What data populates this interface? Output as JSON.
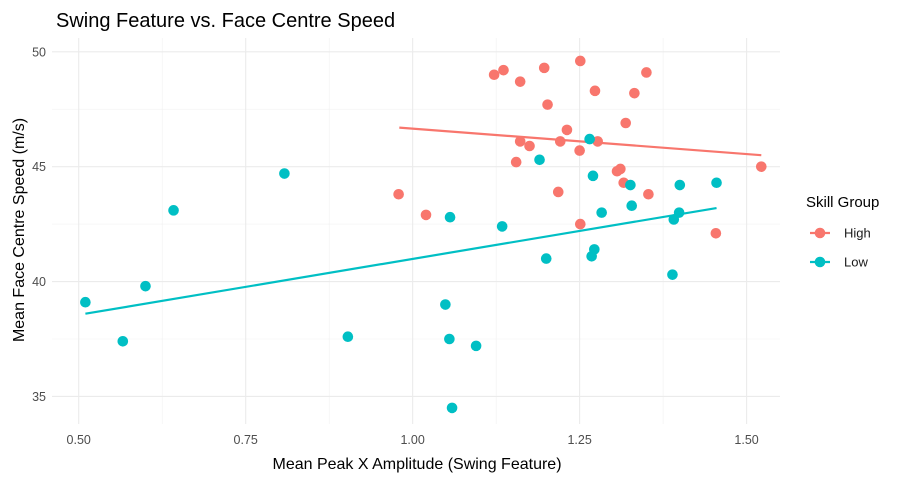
{
  "chart_data": {
    "type": "scatter",
    "title": "Swing Feature vs. Face Centre Speed",
    "xlabel": "Mean Peak X Amplitude (Swing Feature)",
    "ylabel": "Mean Face Centre Speed (m/s)",
    "xlim": [
      0.46,
      1.55
    ],
    "ylim": [
      33.8,
      50.6
    ],
    "xticks": [
      0.5,
      0.75,
      1.0,
      1.25,
      1.5
    ],
    "xtick_labels": [
      "0.50",
      "0.75",
      "1.00",
      "1.25",
      "1.50"
    ],
    "yticks": [
      35,
      40,
      45,
      50
    ],
    "ytick_labels": [
      "35",
      "40",
      "45",
      "50"
    ],
    "grid": true,
    "legend": {
      "title": "Skill Group",
      "position": "right"
    },
    "series": [
      {
        "name": "High",
        "color": "#F8766D",
        "points": [
          [
            1.122,
            49.0
          ],
          [
            1.136,
            49.2
          ],
          [
            1.161,
            48.7
          ],
          [
            1.197,
            49.3
          ],
          [
            1.251,
            49.6
          ],
          [
            1.35,
            49.1
          ],
          [
            1.273,
            48.3
          ],
          [
            1.332,
            48.2
          ],
          [
            1.202,
            47.7
          ],
          [
            1.319,
            46.9
          ],
          [
            1.231,
            46.6
          ],
          [
            1.161,
            46.1
          ],
          [
            1.175,
            45.9
          ],
          [
            1.221,
            46.1
          ],
          [
            1.277,
            46.1
          ],
          [
            1.155,
            45.2
          ],
          [
            1.25,
            45.7
          ],
          [
            1.311,
            44.9
          ],
          [
            1.306,
            44.8
          ],
          [
            1.316,
            44.3
          ],
          [
            1.353,
            43.8
          ],
          [
            1.218,
            43.9
          ],
          [
            0.979,
            43.8
          ],
          [
            1.02,
            42.9
          ],
          [
            1.251,
            42.5
          ],
          [
            1.454,
            42.1
          ],
          [
            1.522,
            45.0
          ]
        ],
        "trend": {
          "x": [
            0.98,
            1.522
          ],
          "y": [
            46.7,
            45.5
          ]
        }
      },
      {
        "name": "Low",
        "color": "#00BFC4",
        "points": [
          [
            1.265,
            46.2
          ],
          [
            1.19,
            45.3
          ],
          [
            1.27,
            44.6
          ],
          [
            0.808,
            44.7
          ],
          [
            1.326,
            44.2
          ],
          [
            1.4,
            44.2
          ],
          [
            1.455,
            44.3
          ],
          [
            0.642,
            43.1
          ],
          [
            1.328,
            43.3
          ],
          [
            1.283,
            43.0
          ],
          [
            1.399,
            43.0
          ],
          [
            1.056,
            42.8
          ],
          [
            1.134,
            42.4
          ],
          [
            1.391,
            42.7
          ],
          [
            1.272,
            41.4
          ],
          [
            1.268,
            41.1
          ],
          [
            1.2,
            41.0
          ],
          [
            1.389,
            40.3
          ],
          [
            0.6,
            39.8
          ],
          [
            0.51,
            39.1
          ],
          [
            1.049,
            39.0
          ],
          [
            0.566,
            37.4
          ],
          [
            0.903,
            37.6
          ],
          [
            1.055,
            37.5
          ],
          [
            1.095,
            37.2
          ],
          [
            1.059,
            34.5
          ]
        ],
        "trend": {
          "x": [
            0.51,
            1.455
          ],
          "y": [
            38.6,
            43.2
          ]
        }
      }
    ]
  }
}
